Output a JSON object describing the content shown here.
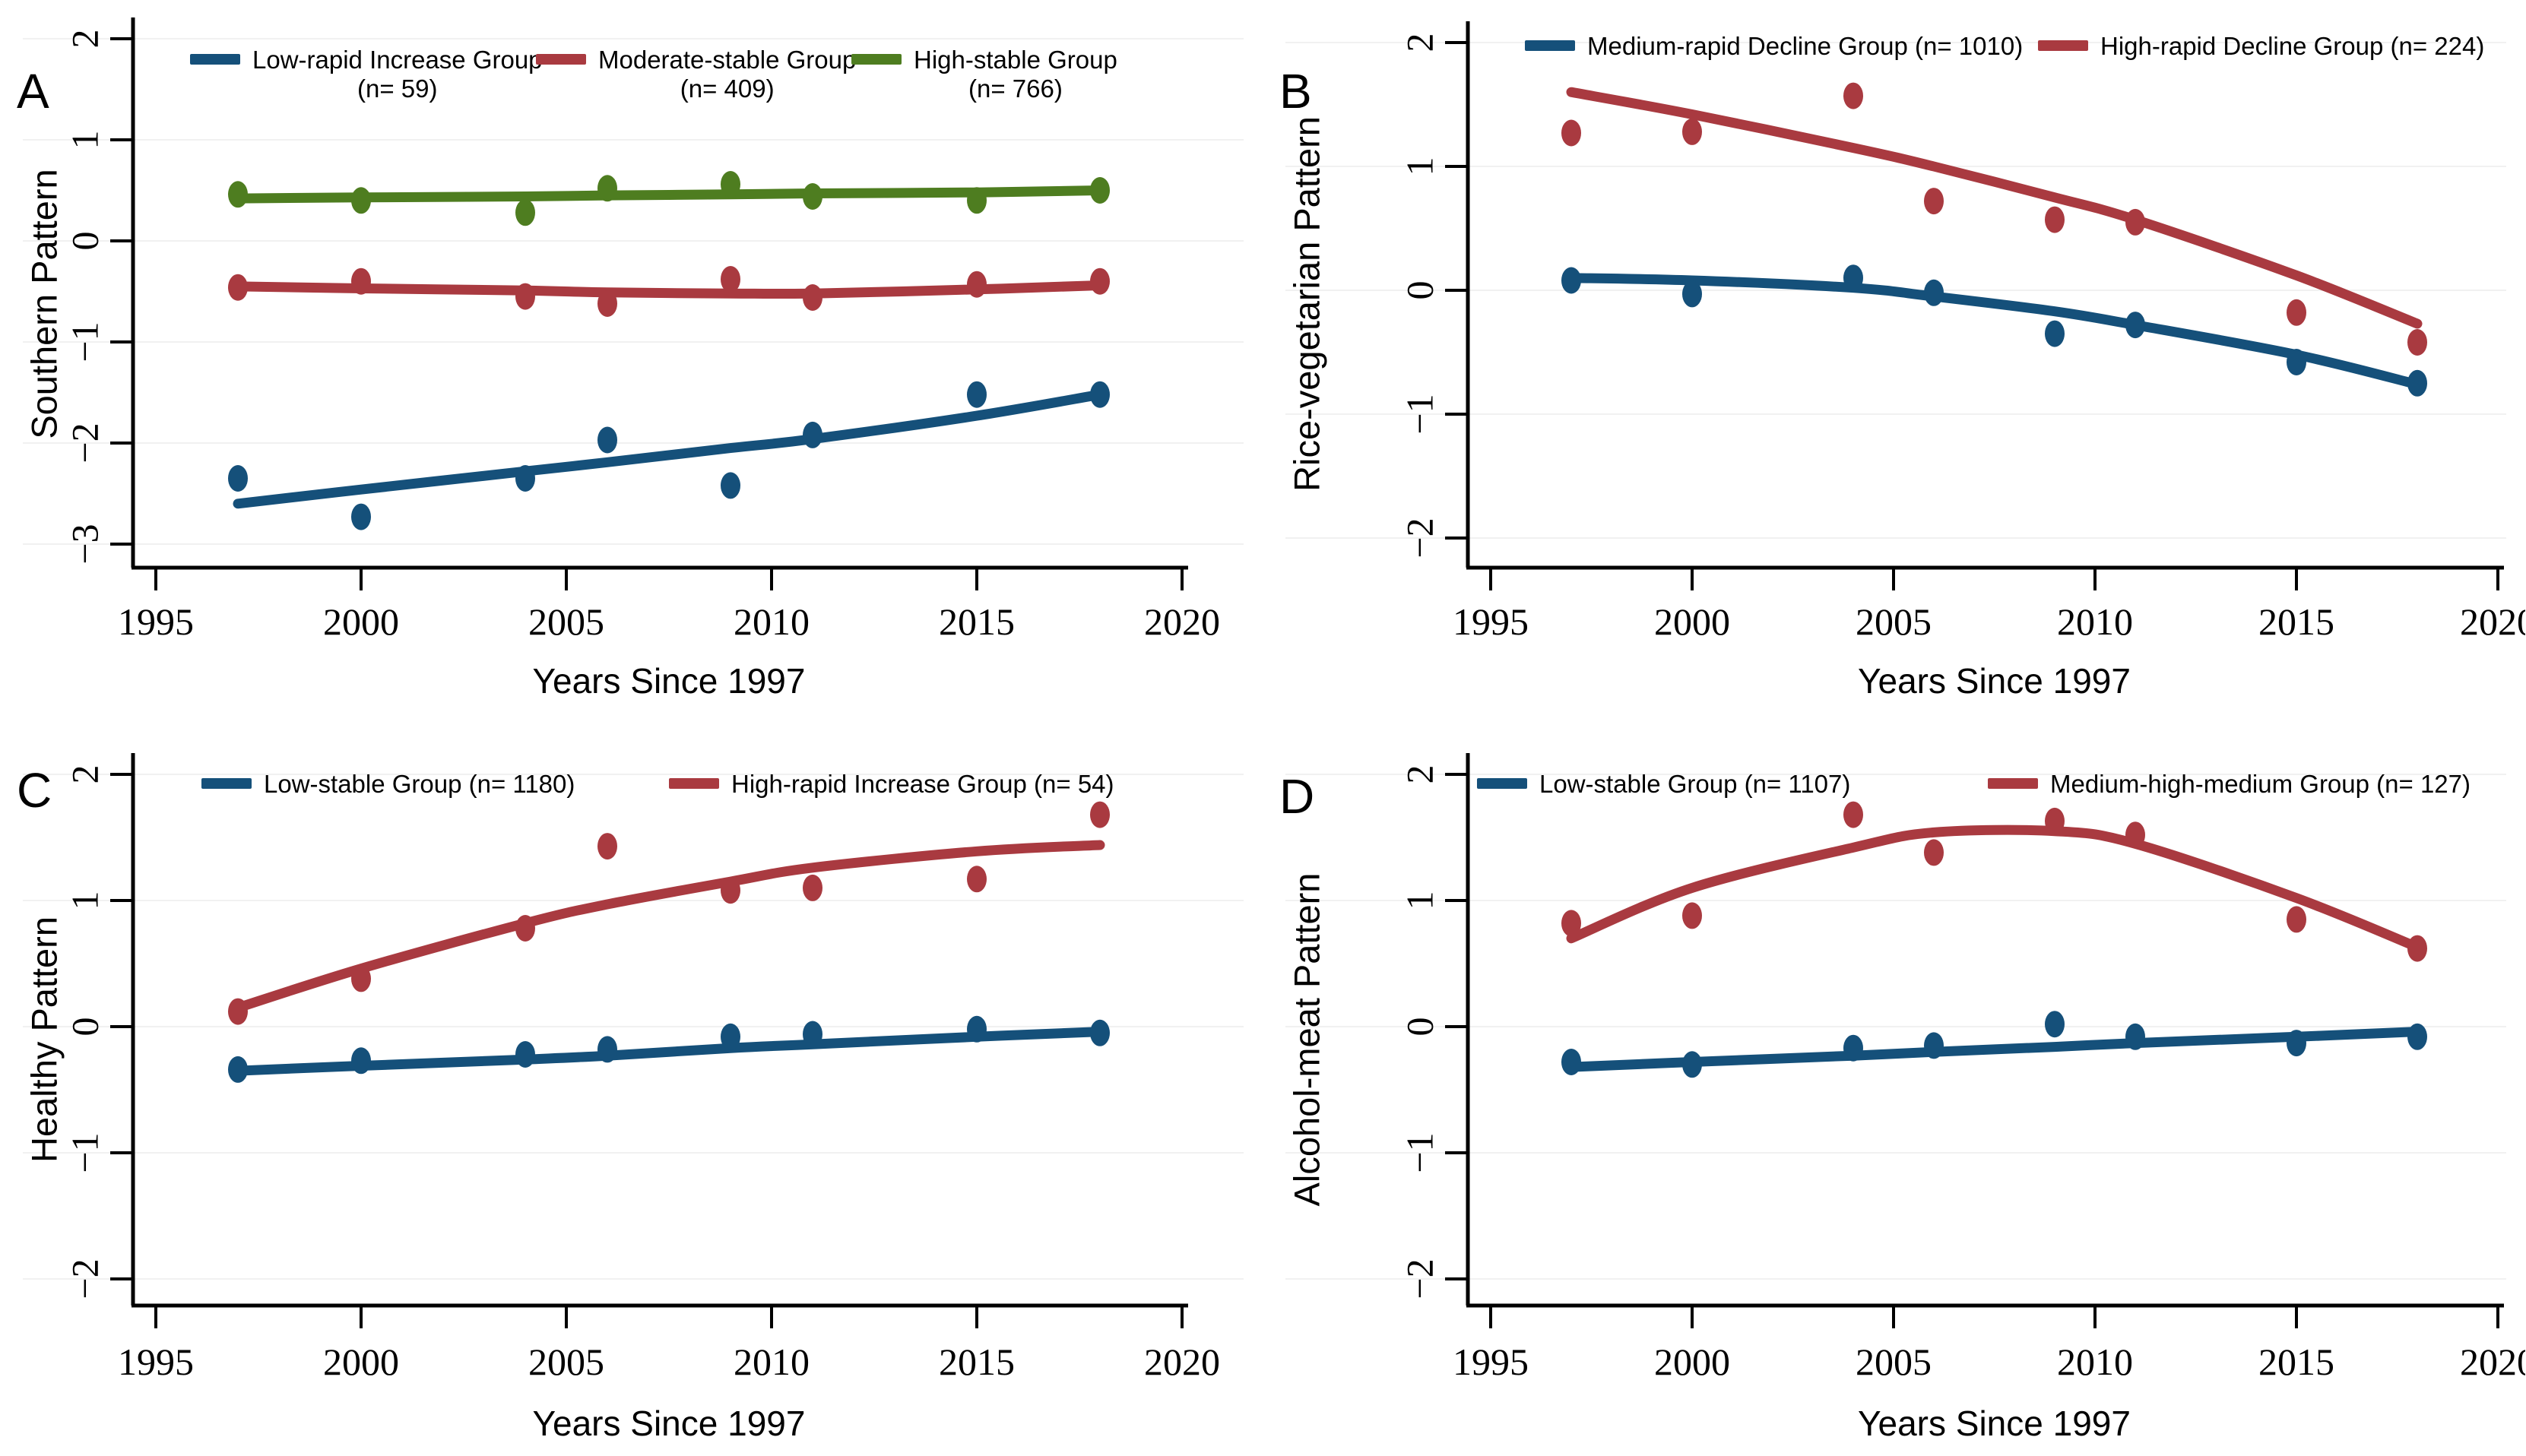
{
  "figure_title": "",
  "colors": {
    "blue": "#15507a",
    "red": "#a93a40",
    "green": "#4e7d20",
    "axis": "#000000",
    "grid": "#f1f1f1",
    "background": "#ffffff"
  },
  "chart_data": [
    {
      "type": "scatter",
      "panel": "A",
      "ylabel": "Southern Pattern",
      "xlabel": "Years Since 1997",
      "x_ticks": [
        1995,
        2000,
        2005,
        2010,
        2015,
        2020
      ],
      "y_ticks": [
        2,
        1,
        0,
        -1,
        -2,
        -3
      ],
      "xlim": [
        1994.4,
        2020.6
      ],
      "ylim": [
        -3.4,
        2.2
      ],
      "grid": "horizontal-light",
      "legend_position": "top",
      "legend_two_line": true,
      "x": [
        1997,
        2000,
        2004,
        2006,
        2009,
        2011,
        2015,
        2018
      ],
      "series": [
        {
          "name": "Low-rapid Increase Group",
          "n_label": "(n= 59)",
          "color": "blue",
          "points": [
            -2.35,
            -2.73,
            -2.35,
            -1.97,
            -2.42,
            -1.92,
            -1.52,
            -1.52
          ],
          "trend": [
            -2.6,
            -2.46,
            -2.28,
            -2.19,
            -2.05,
            -1.96,
            -1.73,
            -1.52
          ]
        },
        {
          "name": "Moderate-stable Group",
          "n_label": "(n= 409)",
          "color": "red",
          "points": [
            -0.46,
            -0.4,
            -0.55,
            -0.62,
            -0.38,
            -0.56,
            -0.43,
            -0.4
          ],
          "trend": [
            -0.45,
            -0.47,
            -0.49,
            -0.51,
            -0.52,
            -0.52,
            -0.48,
            -0.44
          ]
        },
        {
          "name": "High-stable Group",
          "n_label": "(n= 766)",
          "color": "green",
          "points": [
            0.46,
            0.4,
            0.28,
            0.52,
            0.56,
            0.44,
            0.4,
            0.5
          ],
          "trend": [
            0.42,
            0.43,
            0.44,
            0.45,
            0.46,
            0.47,
            0.48,
            0.5
          ]
        }
      ]
    },
    {
      "type": "scatter",
      "panel": "B",
      "ylabel": "Rice-vegetarian Pattern",
      "xlabel": "Years Since 1997",
      "x_ticks": [
        1995,
        2000,
        2005,
        2010,
        2015,
        2020
      ],
      "y_ticks": [
        2,
        1,
        0,
        -1,
        -2
      ],
      "xlim": [
        1994.4,
        2020.6
      ],
      "ylim": [
        -2.35,
        2.2
      ],
      "grid": "horizontal-light",
      "legend_position": "top",
      "legend_two_line": false,
      "x": [
        1997,
        2000,
        2004,
        2006,
        2009,
        2011,
        2015,
        2018
      ],
      "series": [
        {
          "name": "Medium-rapid Decline Group",
          "n_label": "(n= 1010)",
          "color": "blue",
          "points": [
            0.08,
            -0.03,
            0.1,
            -0.02,
            -0.35,
            -0.28,
            -0.58,
            -0.75
          ],
          "trend": [
            0.1,
            0.08,
            0.02,
            -0.05,
            -0.17,
            -0.28,
            -0.52,
            -0.76
          ]
        },
        {
          "name": "High-rapid Decline Group",
          "n_label": "(n= 224)",
          "color": "red",
          "points": [
            1.27,
            1.28,
            1.57,
            0.72,
            0.57,
            0.55,
            -0.18,
            -0.42
          ],
          "trend": [
            1.6,
            1.42,
            1.15,
            1.0,
            0.75,
            0.57,
            0.12,
            -0.27
          ]
        }
      ]
    },
    {
      "type": "scatter",
      "panel": "C",
      "ylabel": "Healthy Pattern",
      "xlabel": "Years Since 1997",
      "x_ticks": [
        1995,
        2000,
        2005,
        2010,
        2015,
        2020
      ],
      "y_ticks": [
        2,
        1,
        0,
        -1,
        -2
      ],
      "xlim": [
        1994.4,
        2020.6
      ],
      "ylim": [
        -2.35,
        2.2
      ],
      "grid": "horizontal-light",
      "legend_position": "top",
      "legend_two_line": false,
      "x": [
        1997,
        2000,
        2004,
        2006,
        2009,
        2011,
        2015,
        2018
      ],
      "series": [
        {
          "name": "Low-stable Group",
          "n_label": "(n= 1180)",
          "color": "blue",
          "points": [
            -0.34,
            -0.27,
            -0.22,
            -0.18,
            -0.08,
            -0.06,
            -0.02,
            -0.05
          ],
          "trend": [
            -0.35,
            -0.31,
            -0.26,
            -0.23,
            -0.17,
            -0.14,
            -0.08,
            -0.04
          ]
        },
        {
          "name": "High-rapid Increase Group",
          "n_label": "(n= 54)",
          "color": "red",
          "points": [
            0.12,
            0.38,
            0.78,
            1.43,
            1.08,
            1.1,
            1.17,
            1.68
          ],
          "trend": [
            0.15,
            0.46,
            0.82,
            0.97,
            1.15,
            1.26,
            1.39,
            1.44
          ]
        }
      ]
    },
    {
      "type": "scatter",
      "panel": "D",
      "ylabel": "Alcohol-meat Pattern",
      "xlabel": "Years Since 1997",
      "x_ticks": [
        1995,
        2000,
        2005,
        2010,
        2015,
        2020
      ],
      "y_ticks": [
        2,
        1,
        0,
        -1,
        -2
      ],
      "xlim": [
        1994.4,
        2020.6
      ],
      "ylim": [
        -2.35,
        2.2
      ],
      "grid": "horizontal-light",
      "legend_position": "top",
      "legend_two_line": false,
      "x": [
        1997,
        2000,
        2004,
        2006,
        2009,
        2011,
        2015,
        2018
      ],
      "series": [
        {
          "name": "Low-stable Group",
          "n_label": "(n= 1107)",
          "color": "blue",
          "points": [
            -0.28,
            -0.3,
            -0.17,
            -0.15,
            0.02,
            -0.08,
            -0.13,
            -0.08
          ],
          "trend": [
            -0.32,
            -0.28,
            -0.23,
            -0.2,
            -0.16,
            -0.13,
            -0.08,
            -0.04
          ]
        },
        {
          "name": "Medium-high-medium Group",
          "n_label": "(n= 127)",
          "color": "red",
          "points": [
            0.82,
            0.88,
            1.68,
            1.38,
            1.63,
            1.52,
            0.85,
            0.62
          ],
          "trend": [
            0.7,
            1.1,
            1.42,
            1.54,
            1.55,
            1.45,
            1.02,
            0.63
          ]
        }
      ]
    }
  ]
}
